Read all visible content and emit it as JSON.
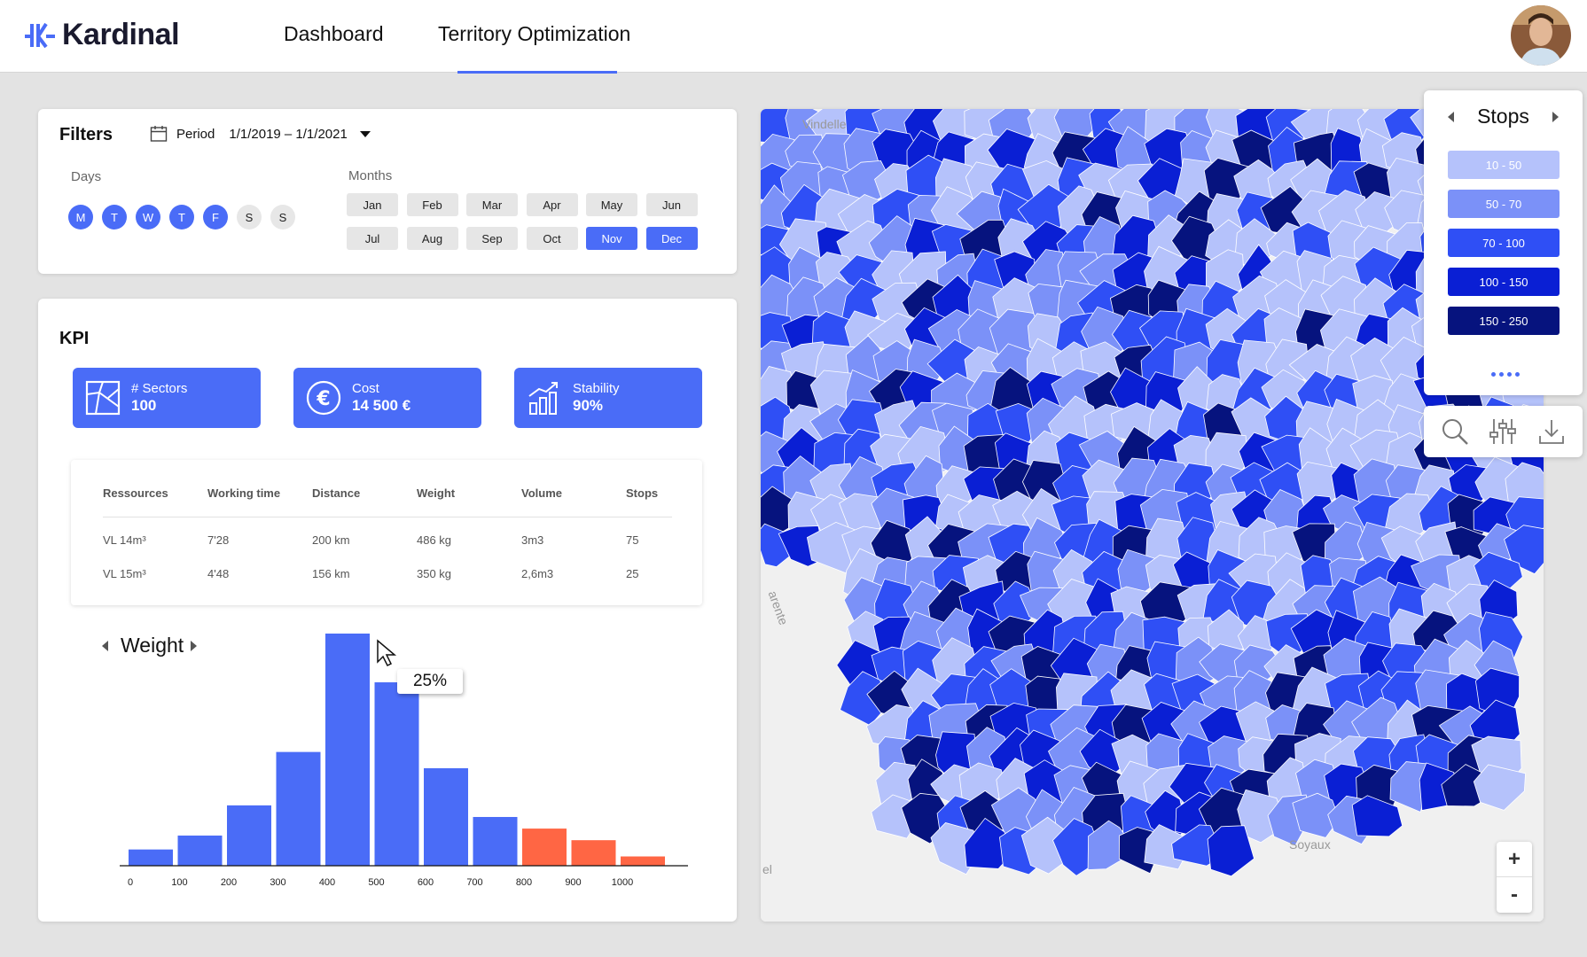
{
  "header": {
    "brand": "Kardinal",
    "nav": [
      {
        "label": "Dashboard",
        "active": false
      },
      {
        "label": "Territory Optimization",
        "active": true
      }
    ]
  },
  "filters": {
    "title": "Filters",
    "period_label": "Period",
    "period_value": "1/1/2019 – 1/1/2021",
    "days_label": "Days",
    "days": [
      {
        "label": "M",
        "selected": true
      },
      {
        "label": "T",
        "selected": true
      },
      {
        "label": "W",
        "selected": true
      },
      {
        "label": "T",
        "selected": true
      },
      {
        "label": "F",
        "selected": true
      },
      {
        "label": "S",
        "selected": false
      },
      {
        "label": "S",
        "selected": false
      }
    ],
    "months_label": "Months",
    "months": [
      {
        "label": "Jan",
        "selected": false
      },
      {
        "label": "Feb",
        "selected": false
      },
      {
        "label": "Mar",
        "selected": false
      },
      {
        "label": "Apr",
        "selected": false
      },
      {
        "label": "May",
        "selected": false
      },
      {
        "label": "Jun",
        "selected": false
      },
      {
        "label": "Jul",
        "selected": false
      },
      {
        "label": "Aug",
        "selected": false
      },
      {
        "label": "Sep",
        "selected": false
      },
      {
        "label": "Oct",
        "selected": false
      },
      {
        "label": "Nov",
        "selected": true
      },
      {
        "label": "Dec",
        "selected": true
      }
    ]
  },
  "kpi": {
    "title": "KPI",
    "cards": [
      {
        "label": "# Sectors",
        "value": "100",
        "icon": "sectors-map-icon"
      },
      {
        "label": "Cost",
        "value": "14 500 €",
        "icon": "euro-icon"
      },
      {
        "label": "Stability",
        "value": "90%",
        "icon": "bar-trend-icon"
      }
    ],
    "table": {
      "headers": [
        "Ressources",
        "Working time",
        "Distance",
        "Weight",
        "Volume",
        "Stops"
      ],
      "rows": [
        [
          "VL 14m³",
          "7'28",
          "200 km",
          "486 kg",
          "3m3",
          "75"
        ],
        [
          "VL 15m³",
          "4'48",
          "156 km",
          "350 kg",
          "2,6m3",
          "25"
        ]
      ]
    }
  },
  "chart_data": {
    "type": "bar",
    "title": "Weight",
    "x_ticks": [
      "0",
      "100",
      "200",
      "300",
      "400",
      "500",
      "600",
      "700",
      "800",
      "900",
      "1000"
    ],
    "values": [
      7,
      13,
      26,
      49,
      100,
      79,
      42,
      21,
      16,
      11,
      4
    ],
    "highlight_from_index": 8,
    "ylim": [
      0,
      100
    ],
    "colors": {
      "normal": "#4a6cf7",
      "highlight": "#ff6644"
    },
    "tooltip": "25%"
  },
  "map": {
    "labels": [
      "Vindelle",
      "Soyaux",
      "arente",
      "el"
    ],
    "legend": {
      "title": "Stops",
      "ranges": [
        {
          "label": "10 - 50",
          "color": "#b5c2fb"
        },
        {
          "label": "50 - 70",
          "color": "#7b91f8"
        },
        {
          "label": "70 - 100",
          "color": "#2f4ff5"
        },
        {
          "label": "100 - 150",
          "color": "#0a1fd4"
        },
        {
          "label": "150 - 250",
          "color": "#06137e"
        }
      ]
    },
    "zoom_in": "+",
    "zoom_out": "-"
  }
}
